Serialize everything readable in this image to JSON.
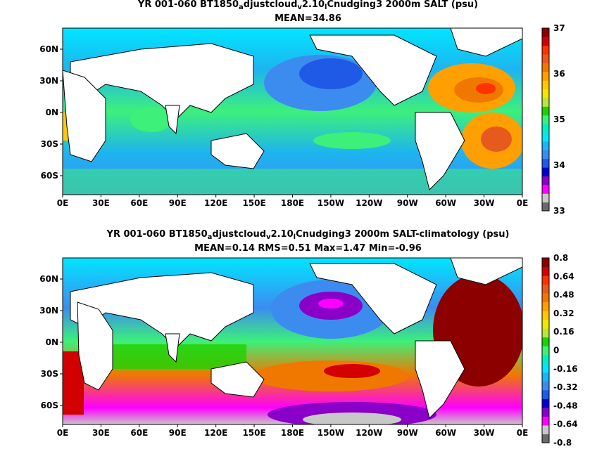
{
  "panels": [
    {
      "title_parts": [
        "YR 001-060 BT1850",
        "a",
        "djustcloud",
        "v",
        "2.10",
        "l",
        "Cnudging3 2000m SALT (psu)"
      ],
      "stats": "MEAN=34.86",
      "colorbar": {
        "labels": [
          "37",
          "36",
          "35",
          "34",
          "33"
        ],
        "colors": [
          "#6b6b6b",
          "#c8c8c8",
          "#ff00ff",
          "#8a00c8",
          "#0000d2",
          "#1e5ae6",
          "#3c8cf0",
          "#1eb4f0",
          "#00e6ff",
          "#00f0c0",
          "#3cf07a",
          "#1ed200",
          "#b4e63c",
          "#f0e600",
          "#ffc800",
          "#ffa000",
          "#f07800",
          "#e65a1e",
          "#ff3200",
          "#d20000",
          "#8c0000"
        ]
      }
    },
    {
      "title_parts": [
        "YR 001-060 BT1850",
        "a",
        "djustcloud",
        "v",
        "2.10",
        "l",
        "Cnudging3 2000m SALT-climatology (psu)"
      ],
      "stats": "MEAN=0.14   RMS=0.51   Max=1.47   Min=-0.96",
      "colorbar": {
        "labels": [
          "0.8",
          "0.64",
          "0.48",
          "0.32",
          "0.16",
          "0",
          "-0.16",
          "-0.32",
          "-0.48",
          "-0.64",
          "-0.8"
        ],
        "colors": [
          "#6b6b6b",
          "#c8c8c8",
          "#ff00ff",
          "#8a00c8",
          "#0000d2",
          "#1e5ae6",
          "#3c8cf0",
          "#1eb4f0",
          "#00e6ff",
          "#00f0c0",
          "#3cf07a",
          "#1ed200",
          "#b4e63c",
          "#f0e600",
          "#ffc800",
          "#ffa000",
          "#f07800",
          "#e65a1e",
          "#ff3200",
          "#d20000",
          "#8c0000"
        ]
      }
    }
  ],
  "map_axes": {
    "lon_labels": [
      "0E",
      "30E",
      "60E",
      "90E",
      "120E",
      "150E",
      "180E",
      "150W",
      "120W",
      "90W",
      "60W",
      "30W",
      "0E"
    ],
    "lat_labels": [
      "60N",
      "30N",
      "0N",
      "30S",
      "60S"
    ]
  }
}
